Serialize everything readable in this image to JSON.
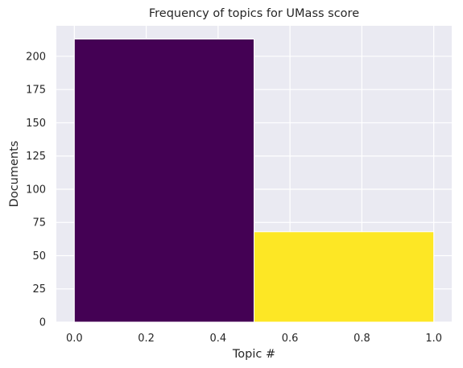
{
  "chart_data": {
    "type": "bar",
    "title": "Frequency of topics for UMass score",
    "xlabel": "Topic #",
    "ylabel": "Documents",
    "xlim": [
      -0.05,
      1.05
    ],
    "ylim": [
      0,
      223
    ],
    "xticks": [
      0.0,
      0.2,
      0.4,
      0.6,
      0.8,
      1.0
    ],
    "xtick_labels": [
      "0.0",
      "0.2",
      "0.4",
      "0.6",
      "0.8",
      "1.0"
    ],
    "yticks": [
      0,
      25,
      50,
      75,
      100,
      125,
      150,
      175,
      200
    ],
    "ytick_labels": [
      "0",
      "25",
      "50",
      "75",
      "100",
      "125",
      "150",
      "175",
      "200"
    ],
    "grid": true,
    "bars": [
      {
        "x_start": 0.0,
        "x_end": 0.5,
        "value": 213,
        "color": "#440154"
      },
      {
        "x_start": 0.5,
        "x_end": 1.0,
        "value": 68,
        "color": "#fde725"
      }
    ],
    "colors": {
      "plot_background": "#eaeaf2",
      "grid": "#ffffff",
      "text": "#262626"
    }
  }
}
